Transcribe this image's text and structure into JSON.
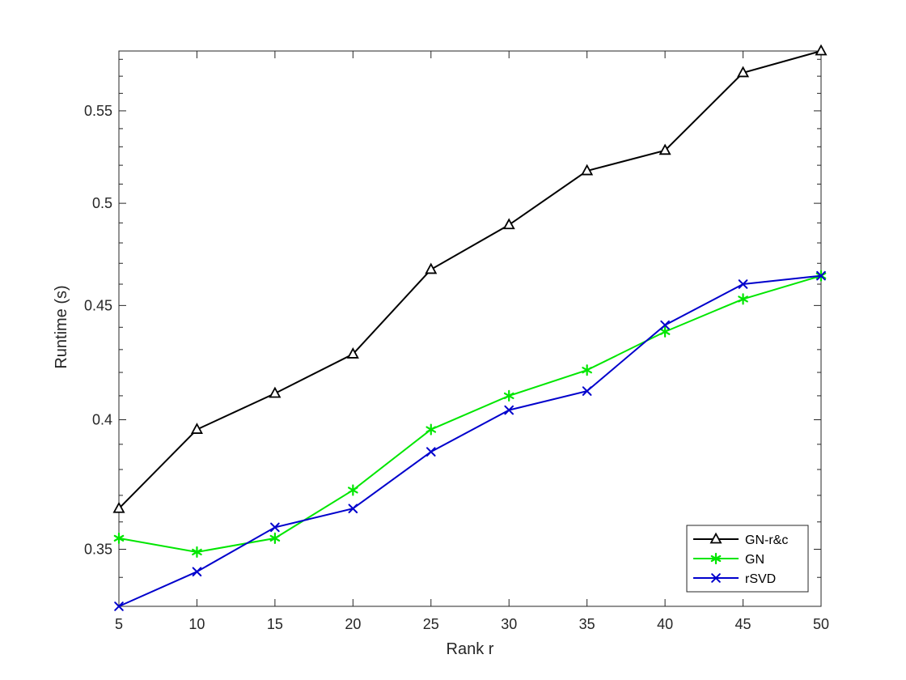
{
  "chart_data": {
    "type": "line",
    "title": "",
    "xlabel": "Rank r",
    "ylabel": "Runtime (s)",
    "y_scale": "log",
    "x": [
      5,
      10,
      15,
      20,
      25,
      30,
      35,
      40,
      45,
      50
    ],
    "xlim": [
      5,
      50
    ],
    "ylim": [
      0.33,
      0.585
    ],
    "x_ticks": [
      5,
      10,
      15,
      20,
      25,
      30,
      35,
      40,
      45,
      50
    ],
    "x_tick_labels": [
      "5",
      "10",
      "15",
      "20",
      "25",
      "30",
      "35",
      "40",
      "45",
      "50"
    ],
    "y_ticks": [
      0.35,
      0.4,
      0.45,
      0.5,
      0.55
    ],
    "y_tick_labels": [
      "0.35",
      "0.4",
      "0.45",
      "0.5",
      "0.55"
    ],
    "grid": false,
    "legend_position": "bottom-right",
    "series": [
      {
        "name": "GN-r&c",
        "color": "#000000",
        "marker": "triangle",
        "values": [
          0.365,
          0.396,
          0.411,
          0.428,
          0.467,
          0.489,
          0.517,
          0.528,
          0.572,
          0.585
        ]
      },
      {
        "name": "GN",
        "color": "#00e600",
        "marker": "asterisk",
        "values": [
          0.354,
          0.349,
          0.354,
          0.372,
          0.396,
          0.41,
          0.421,
          0.438,
          0.453,
          0.464
        ]
      },
      {
        "name": "rSVD",
        "color": "#0000cc",
        "marker": "x",
        "values": [
          0.33,
          0.342,
          0.358,
          0.365,
          0.387,
          0.404,
          0.412,
          0.441,
          0.46,
          0.464
        ]
      }
    ]
  }
}
